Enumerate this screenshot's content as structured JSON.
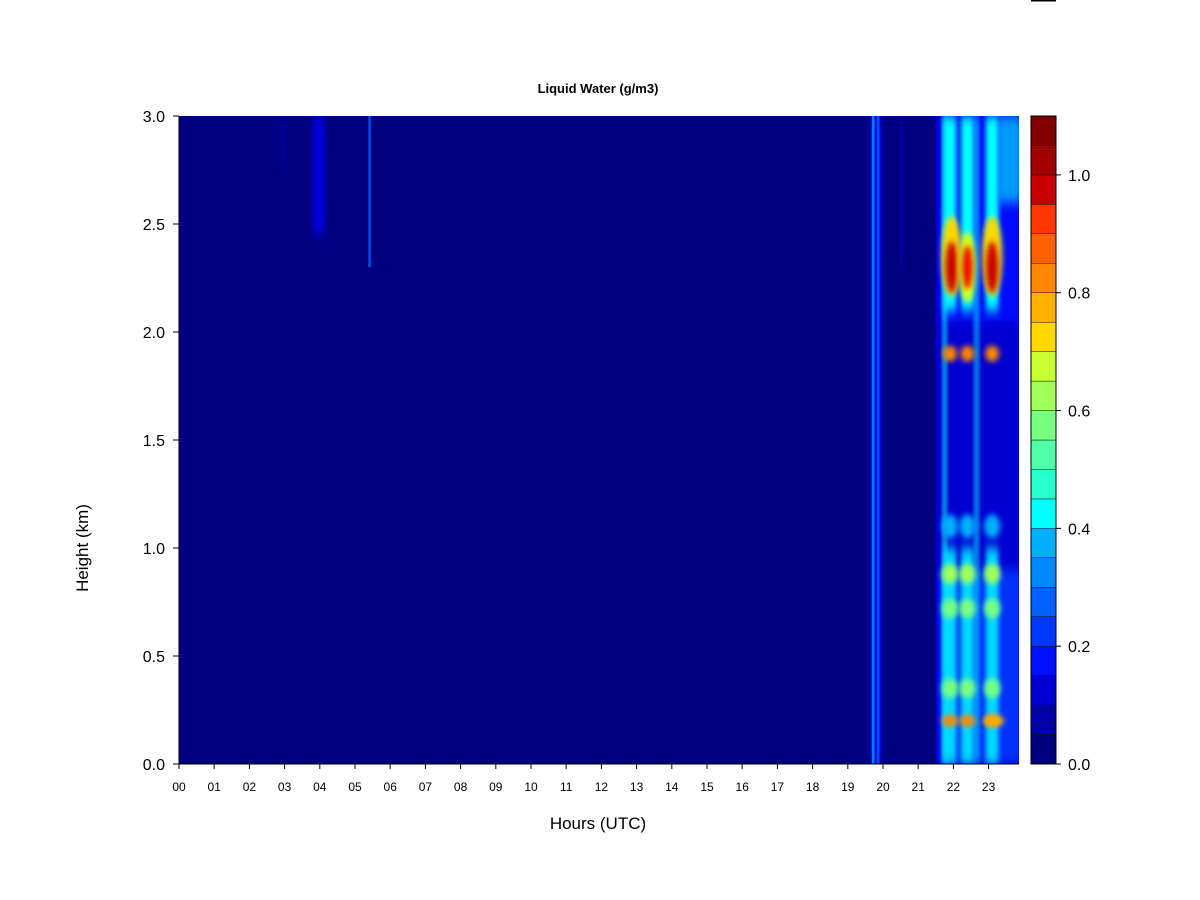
{
  "chart_data": {
    "type": "heatmap",
    "title": "Liquid Water (g/m3)",
    "xlabel": "Hours (UTC)",
    "ylabel": "Height (km)",
    "x_ticks": [
      "00",
      "01",
      "02",
      "03",
      "04",
      "05",
      "06",
      "07",
      "08",
      "09",
      "10",
      "11",
      "12",
      "13",
      "14",
      "15",
      "16",
      "17",
      "18",
      "19",
      "20",
      "21",
      "22",
      "23"
    ],
    "xlim": [
      0,
      23.9
    ],
    "y_ticks": [
      "0.0",
      "0.5",
      "1.0",
      "1.5",
      "2.0",
      "2.5",
      "3.0"
    ],
    "ylim": [
      0,
      3.0
    ],
    "colorbar": {
      "ticks": [
        "0.0",
        "0.2",
        "0.4",
        "0.6",
        "0.8",
        "1.0"
      ],
      "range": [
        0,
        1.1
      ],
      "levels": [
        0,
        0.05,
        0.1,
        0.15,
        0.2,
        0.25,
        0.3,
        0.35,
        0.4,
        0.45,
        0.5,
        0.55,
        0.6,
        0.65,
        0.7,
        0.75,
        0.8,
        0.85,
        0.9,
        0.95,
        1.0,
        1.05,
        1.1
      ],
      "colors": [
        "#000080",
        "#0000A8",
        "#0000D0",
        "#0000F0",
        "#0010FF",
        "#0038FF",
        "#0060FF",
        "#0088FF",
        "#00B0FF",
        "#00D8FF",
        "#00FFFF",
        "#28FFD0",
        "#50FFA8",
        "#78FF80",
        "#A0FF58",
        "#C8FF30",
        "#F0FF00",
        "#FFD800",
        "#FFB000",
        "#FF8800",
        "#FF6000",
        "#FF3800",
        "#F00000",
        "#C80000",
        "#A00000",
        "#800000"
      ]
    },
    "background_value": 0.0,
    "features": [
      {
        "hour": 3.95,
        "height_min": 2.45,
        "height_max": 3.0,
        "value": 0.1
      },
      {
        "hour": 5.4,
        "height_min": 2.3,
        "height_max": 3.0,
        "value": 0.2
      },
      {
        "hour": 19.75,
        "height_min": 0.0,
        "height_max": 3.0,
        "value": 0.35
      },
      {
        "hour": 21.95,
        "height_min": 2.1,
        "height_max": 2.55,
        "value": 1.0
      },
      {
        "hour": 22.4,
        "height_min": 2.1,
        "height_max": 2.5,
        "value": 0.9
      },
      {
        "hour": 23.1,
        "height_min": 2.1,
        "height_max": 2.5,
        "value": 1.0
      },
      {
        "hour": 22.4,
        "height_min": 1.85,
        "height_max": 1.95,
        "value": 0.9
      },
      {
        "hour": 22.2,
        "height_min": 0.8,
        "height_max": 1.0,
        "value": 0.6
      },
      {
        "hour": 22.2,
        "height_min": 0.15,
        "height_max": 0.25,
        "value": 0.8
      }
    ]
  }
}
